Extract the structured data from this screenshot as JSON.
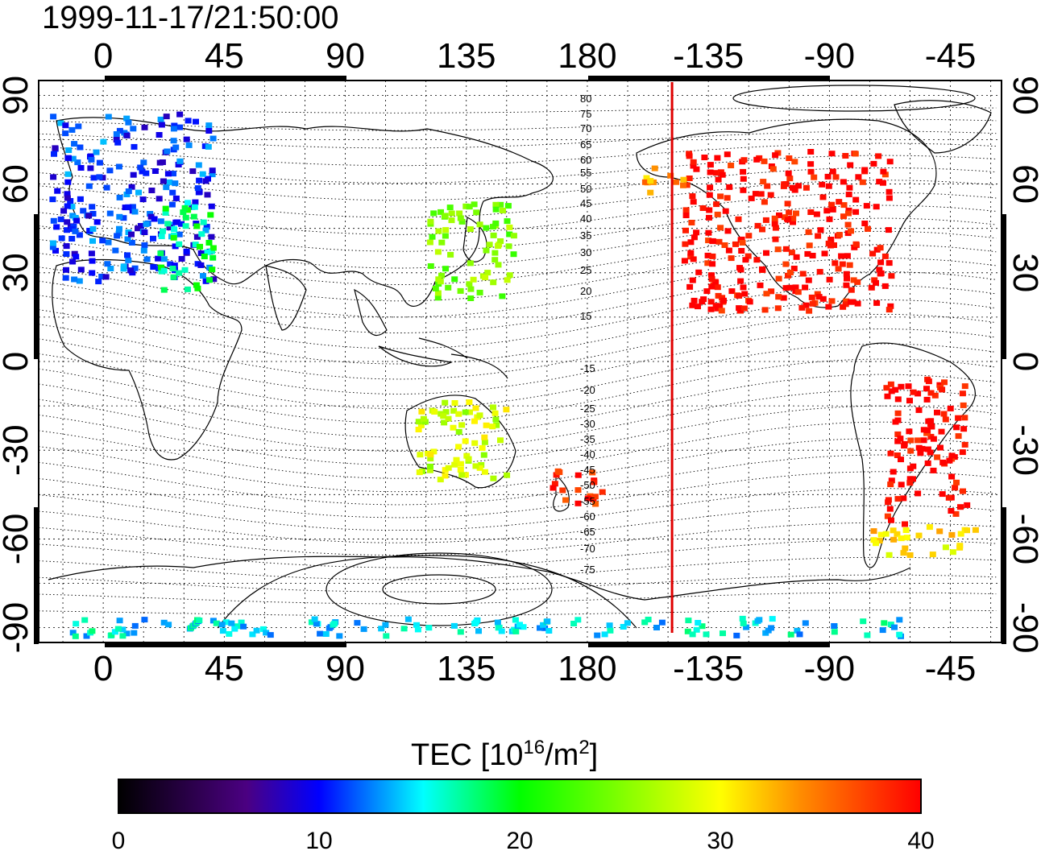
{
  "title": "1999-11-17/21:50:00",
  "axes": {
    "x_ticks": [
      "0",
      "45",
      "90",
      "135",
      "180",
      "-135",
      "-90",
      "-45"
    ],
    "y_ticks": [
      "90",
      "60",
      "30",
      "0",
      "-30",
      "-60",
      "-90"
    ]
  },
  "map": {
    "projection": "equirectangular",
    "lon_range": [
      -24,
      334
    ],
    "lat_range": [
      -95,
      95
    ],
    "terminator_line_lon": 211.5,
    "terminator_color": "#e00000",
    "grid": "dotted"
  },
  "contours": {
    "labels_north": [
      "80",
      "75",
      "70",
      "65",
      "60",
      "55",
      "50",
      "45",
      "40",
      "35",
      "30",
      "25",
      "20",
      "15"
    ],
    "labels_south": [
      "-15",
      "-20",
      "-25",
      "-30",
      "-35",
      "-40",
      "-45",
      "-50",
      "-55",
      "-60",
      "-65",
      "-70",
      "-75"
    ]
  },
  "colorbar": {
    "title_main": "TEC  [10",
    "title_sup1": "16",
    "title_mid": "/m",
    "title_sup2": "2",
    "title_end": "]",
    "ticks": [
      "0",
      "10",
      "20",
      "30",
      "40"
    ],
    "min": 0,
    "max": 40,
    "colors": [
      "#000000",
      "#4b0082",
      "#0000ff",
      "#00ffff",
      "#00ff00",
      "#ffff00",
      "#ff8c00",
      "#ff0000"
    ]
  },
  "data_regions": [
    {
      "lon": [
        -20,
        40
      ],
      "lat": [
        28,
        85
      ],
      "value": 11
    },
    {
      "lon": [
        20,
        40
      ],
      "lat": [
        25,
        55
      ],
      "value": 18
    },
    {
      "lon": [
        120,
        152
      ],
      "lat": [
        22,
        55
      ],
      "value": 25
    },
    {
      "lon": [
        215,
        292
      ],
      "lat": [
        18,
        72
      ],
      "value": 40
    },
    {
      "lon": [
        290,
        320
      ],
      "lat": [
        -55,
        -5
      ],
      "value": 40
    },
    {
      "lon": [
        165,
        185
      ],
      "lat": [
        -48,
        -35
      ],
      "value": 39
    },
    {
      "lon": [
        200,
        215
      ],
      "lat": [
        58,
        68
      ],
      "value": 33
    },
    {
      "lon": [
        285,
        325
      ],
      "lat": [
        -65,
        -55
      ],
      "value": 31
    },
    {
      "lon": [
        115,
        150
      ],
      "lat": [
        -40,
        -12
      ],
      "value": 28
    },
    {
      "lon": [
        -20,
        300
      ],
      "lat": [
        -92,
        -86
      ],
      "value": 15
    }
  ]
}
